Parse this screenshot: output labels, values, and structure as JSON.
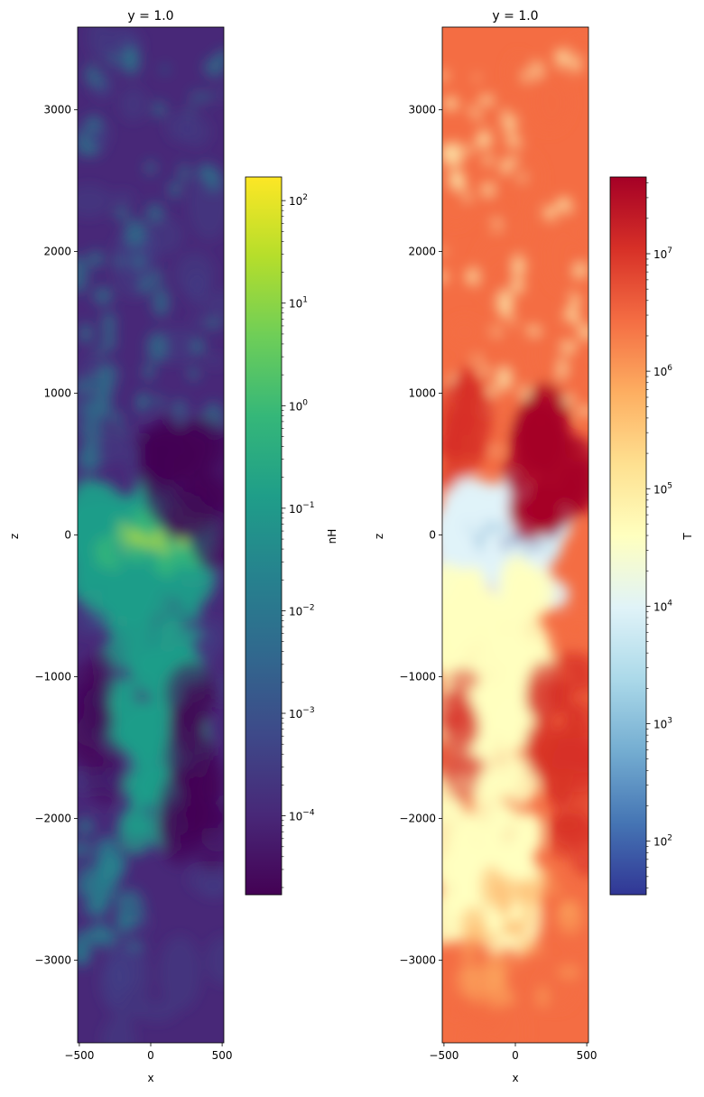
{
  "chart_data": [
    {
      "type": "heatmap",
      "title": "y = 1.0",
      "xlabel": "x",
      "ylabel": "z",
      "xlim": [
        -512,
        512
      ],
      "ylim": [
        -3584,
        3584
      ],
      "xticks": [
        -500,
        0,
        500
      ],
      "xtick_labels": [
        "−500",
        "0",
        "500"
      ],
      "yticks": [
        -3000,
        -2000,
        -1000,
        0,
        1000,
        2000,
        3000
      ],
      "ytick_labels": [
        "−3000",
        "−2000",
        "−1000",
        "0",
        "1000",
        "2000",
        "3000"
      ],
      "field": "nH",
      "colormap": "viridis",
      "colors": [
        "#440154",
        "#482878",
        "#3e4989",
        "#31688e",
        "#26828e",
        "#1f9e89",
        "#35b779",
        "#6ece58",
        "#b5de2b",
        "#fde725"
      ],
      "colorbar": {
        "label": "nH",
        "scale": "log",
        "range": [
          1.7e-05,
          170
        ],
        "tick_exponents": [
          -4,
          -3,
          -2,
          -1,
          0,
          1,
          2
        ],
        "tick_labels": [
          "10",
          "10",
          "10",
          "10",
          "10",
          "10",
          "10"
        ],
        "tick_superscripts": [
          "−4",
          "−3",
          "−2",
          "−1",
          "0",
          "1",
          "2"
        ]
      }
    },
    {
      "type": "heatmap",
      "title": "y = 1.0",
      "xlabel": "x",
      "ylabel": "z",
      "xlim": [
        -512,
        512
      ],
      "ylim": [
        -3584,
        3584
      ],
      "xticks": [
        -500,
        0,
        500
      ],
      "xtick_labels": [
        "−500",
        "0",
        "500"
      ],
      "yticks": [
        -3000,
        -2000,
        -1000,
        0,
        1000,
        2000,
        3000
      ],
      "ytick_labels": [
        "−3000",
        "−2000",
        "−1000",
        "0",
        "1000",
        "2000",
        "3000"
      ],
      "field": "T",
      "colormap": "RdYlBu_r",
      "colors": [
        "#313695",
        "#4575b4",
        "#74add1",
        "#abd9e9",
        "#e0f3f8",
        "#ffffbf",
        "#fee090",
        "#fdae61",
        "#f46d43",
        "#d73027",
        "#a50026"
      ],
      "colorbar": {
        "label": "T",
        "scale": "log",
        "range": [
          35,
          45000000.0
        ],
        "tick_exponents": [
          2,
          3,
          4,
          5,
          6,
          7
        ],
        "tick_labels": [
          "10",
          "10",
          "10",
          "10",
          "10",
          "10"
        ],
        "tick_superscripts": [
          "2",
          "3",
          "4",
          "5",
          "6",
          "7"
        ]
      }
    }
  ]
}
